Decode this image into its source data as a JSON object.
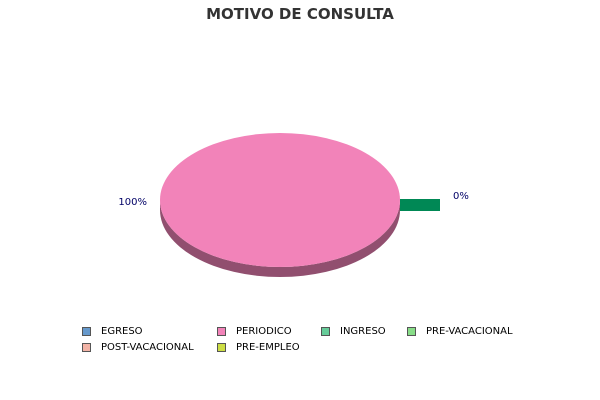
{
  "chart_data": {
    "type": "pie",
    "title": "MOTIVO DE CONSULTA",
    "categories": [
      "EGRESO",
      "PERIODICO",
      "INGRESO",
      "PRE-VACACIONAL",
      "POST-VACACIONAL",
      "PRE-EMPLEO"
    ],
    "values": [
      0,
      100,
      0,
      0,
      0,
      0
    ],
    "colors": [
      "#6699cc",
      "#f283b9",
      "#66cc99",
      "#88dd88",
      "#f2b3a6",
      "#ccdd44"
    ],
    "data_labels": [
      {
        "category": "PERIODICO",
        "text": "100%"
      },
      {
        "category": "INGRESO",
        "text": "0%"
      }
    ],
    "style": "3d",
    "legend_position": "bottom"
  }
}
